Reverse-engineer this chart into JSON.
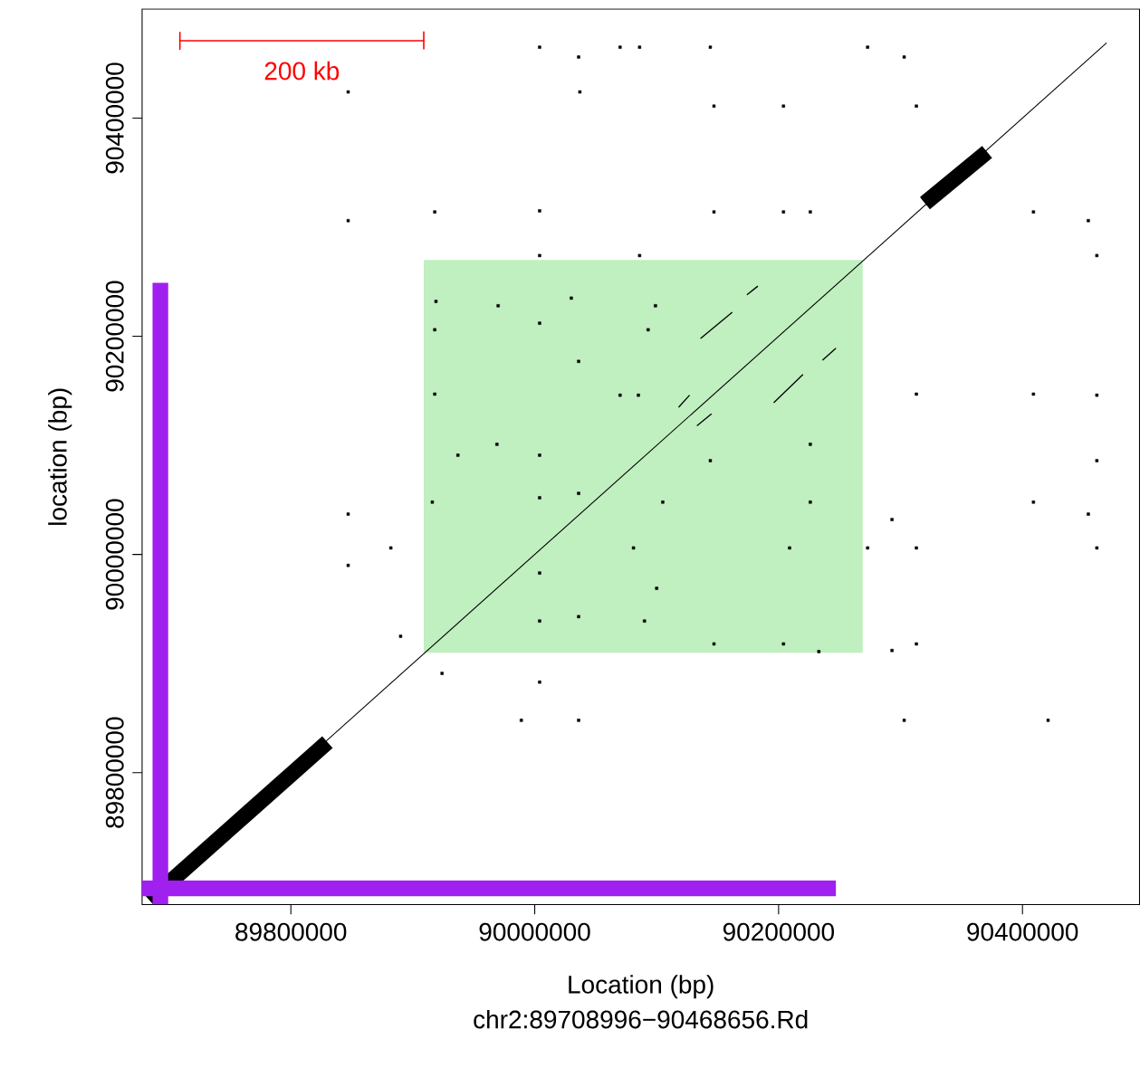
{
  "chart_data": {
    "type": "line",
    "subtitle": "chr2:89708996−90468656.Rd",
    "xlabel": "Location (bp)",
    "ylabel": "location (bp)",
    "xlim": [
      89678000,
      90496000
    ],
    "ylim": [
      89679000,
      90500000
    ],
    "xticks": [
      89800000,
      90000000,
      90200000,
      90400000
    ],
    "yticks": [
      89800000,
      90000000,
      90200000,
      90400000
    ],
    "annotations": [
      "200 kb"
    ],
    "series": [
      {
        "type": "area",
        "color": "#c0efc0",
        "x": [
          89909000,
          89909000,
          90269000,
          90269000
        ],
        "values": [
          89910000,
          90270000,
          90270000,
          89910000
        ]
      },
      {
        "color": "#000000",
        "x": [
          89709000,
          90469000
        ],
        "values": [
          89709000,
          90469000
        ]
      },
      {
        "color": "#000000",
        "x": [
          89684000,
          89830000
        ],
        "values": [
          89683000,
          89828000
        ]
      },
      {
        "color": "#000000",
        "x": [
          90320000,
          90371000
        ],
        "values": [
          90322000,
          90369000
        ]
      },
      {
        "color": "#000000",
        "x": [
          90136000,
          90162000
        ],
        "values": [
          90198000,
          90222000
        ]
      },
      {
        "color": "#000000",
        "x": [
          90118000,
          90127000
        ],
        "values": [
          90135000,
          90146000
        ]
      },
      {
        "color": "#000000",
        "x": [
          90133000,
          90145000
        ],
        "values": [
          90118000,
          90129000
        ]
      },
      {
        "color": "#000000",
        "x": [
          90196000,
          90220000
        ],
        "values": [
          90139000,
          90165000
        ]
      },
      {
        "color": "#000000",
        "x": [
          90236000,
          90247000
        ],
        "values": [
          90178000,
          90189000
        ]
      },
      {
        "color": "#000000",
        "x": [
          90174000,
          90183000
        ],
        "values": [
          90238000,
          90246000
        ]
      },
      {
        "type": "scatter",
        "color": "#000000",
        "x": [
          90004000,
          90070000,
          90086000,
          90144000,
          90273000,
          90036000,
          90303000,
          89847000,
          90037000,
          90147000,
          90204000,
          90313000,
          89847000,
          89918000,
          90004000,
          90147000,
          90204000,
          90226000,
          90409000,
          90454000,
          90461000,
          90004000,
          90086000,
          89919000,
          89970000,
          90030000,
          90099000,
          90004000,
          89918000,
          90093000,
          90036000,
          90070000,
          90085000,
          89918000,
          90313000,
          90409000,
          90461000,
          89969000,
          89937000,
          90004000,
          90226000,
          90144000,
          90461000,
          89847000,
          89916000,
          90004000,
          90036000,
          90105000,
          90226000,
          90293000,
          90409000,
          90454000,
          89882000,
          89847000,
          90081000,
          90209000,
          90313000,
          90273000,
          90461000,
          90004000,
          90100000,
          90004000,
          90036000,
          90090000,
          89890000,
          89924000,
          90004000,
          89989000,
          90036000,
          90303000,
          90421000,
          90293000,
          90313000,
          90147000,
          90204000,
          90233000
        ],
        "values": [
          90465000,
          90465000,
          90465000,
          90465000,
          90465000,
          90456000,
          90456000,
          90424000,
          90424000,
          90411000,
          90411000,
          90411000,
          90306000,
          90314000,
          90315000,
          90314000,
          90314000,
          90314000,
          90314000,
          90306000,
          90274000,
          90274000,
          90274000,
          90232000,
          90228000,
          90235000,
          90228000,
          90212000,
          90206000,
          90206000,
          90177000,
          90146000,
          90146000,
          90147000,
          90147000,
          90147000,
          90146000,
          90101000,
          90091000,
          90091000,
          90101000,
          90086000,
          90086000,
          90037000,
          90048000,
          90052000,
          90056000,
          90048000,
          90048000,
          90032000,
          90048000,
          90037000,
          90006000,
          89990000,
          90006000,
          90006000,
          90006000,
          90006000,
          90006000,
          89983000,
          89969000,
          89939000,
          89943000,
          89939000,
          89925000,
          89891000,
          89883000,
          89848000,
          89848000,
          89848000,
          89848000,
          89912000,
          89918000,
          89918000,
          89918000,
          89911000
        ]
      },
      {
        "color": "#a020f0",
        "x": [
          89678000,
          90247000
        ],
        "values": [
          89694000,
          89694000
        ]
      },
      {
        "color": "#a020f0",
        "x": [
          89693000,
          89693000
        ],
        "values": [
          89679000,
          90249000
        ]
      },
      {
        "color": "#ff0000",
        "x": [
          89709000,
          89709000,
          89709000,
          89909000,
          89909000,
          89909000
        ],
        "values": [
          90479000,
          90463000,
          90471000,
          90471000,
          90479000,
          90463000
        ]
      }
    ]
  }
}
